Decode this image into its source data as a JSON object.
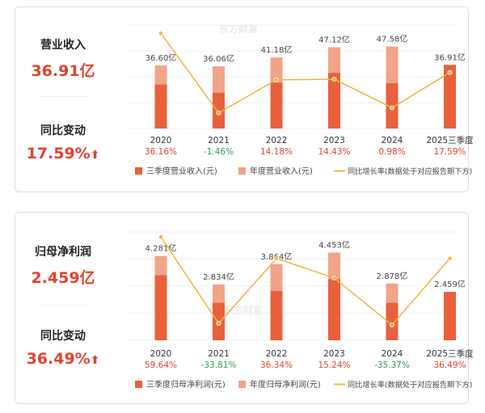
{
  "panels": [
    {
      "metric_label": "营业收入",
      "metric_value": "36.91亿",
      "change_label": "同比变动",
      "change_value": "17.59%",
      "change_arrow": "up-arrow-icon",
      "watermark": "东方财富"
    },
    {
      "metric_label": "归母净利润",
      "metric_value": "2.459亿",
      "change_label": "同比变动",
      "change_value": "36.49%",
      "change_arrow": "up-arrow-icon",
      "watermark": "东方财富"
    }
  ],
  "colors": {
    "q3_bar": "#e8603c",
    "annual_bar": "#f0a48a",
    "growth_line": "#f2b33d",
    "up": "#e2432e",
    "down": "#2b9b59"
  },
  "chart_data": [
    {
      "type": "bar",
      "categories": [
        "2020",
        "2021",
        "2022",
        "2023",
        "2024",
        "2025三季度"
      ],
      "series": [
        {
          "name": "三季度营业收入(元)",
          "values": [
            25.5,
            20.7,
            26.6,
            32.2,
            26.3,
            36.91
          ]
        },
        {
          "name": "年度营业收入(元)",
          "values": [
            36.6,
            36.06,
            41.18,
            47.12,
            47.58,
            null
          ]
        },
        {
          "name": "同比增长率(数据处于对应报告期下方)",
          "type": "line",
          "values": [
            36.16,
            -1.46,
            14.18,
            14.43,
            0.98,
            17.59
          ]
        }
      ],
      "value_labels": [
        "36.60亿",
        "36.06亿",
        "41.18亿",
        "47.12亿",
        "47.58亿",
        "36.91亿"
      ],
      "growth_labels": [
        "36.16%",
        "-1.46%",
        "14.18%",
        "14.43%",
        "0.98%",
        "17.59%"
      ],
      "legend": [
        "三季度营业收入(元)",
        "年度营业收入(元)",
        "同比增长率(数据处于对应报告期下方)"
      ],
      "legend_position": "bottom",
      "ylim": [
        0,
        60
      ],
      "growth_ylim": [
        -5,
        40
      ],
      "grid": true
    },
    {
      "type": "bar",
      "categories": [
        "2020",
        "2021",
        "2022",
        "2023",
        "2024",
        "2025三季度"
      ],
      "series": [
        {
          "name": "三季度归母净利润(元)",
          "values": [
            3.3,
            1.9,
            2.5,
            3.1,
            1.9,
            2.459
          ]
        },
        {
          "name": "年度归母净利润(元)",
          "values": [
            4.281,
            2.834,
            3.864,
            4.453,
            2.878,
            null
          ]
        },
        {
          "name": "同比增长率(数据处于对应报告期下方)",
          "type": "line",
          "values": [
            59.64,
            -33.81,
            36.34,
            15.24,
            -35.37,
            36.49
          ]
        }
      ],
      "value_labels": [
        "4.281亿",
        "2.834亿",
        "3.864亿",
        "4.453亿",
        "2.878亿",
        "2.459亿"
      ],
      "growth_labels": [
        "59.64%",
        "-33.81%",
        "36.34%",
        "15.24%",
        "-35.37%",
        "36.49%"
      ],
      "legend": [
        "三季度归母净利润(元)",
        "年度归母净利润(元)",
        "同比增长率(数据处于对应报告期下方)"
      ],
      "legend_position": "bottom",
      "ylim": [
        0,
        5.5
      ],
      "growth_ylim": [
        -45,
        65
      ],
      "grid": true
    }
  ]
}
